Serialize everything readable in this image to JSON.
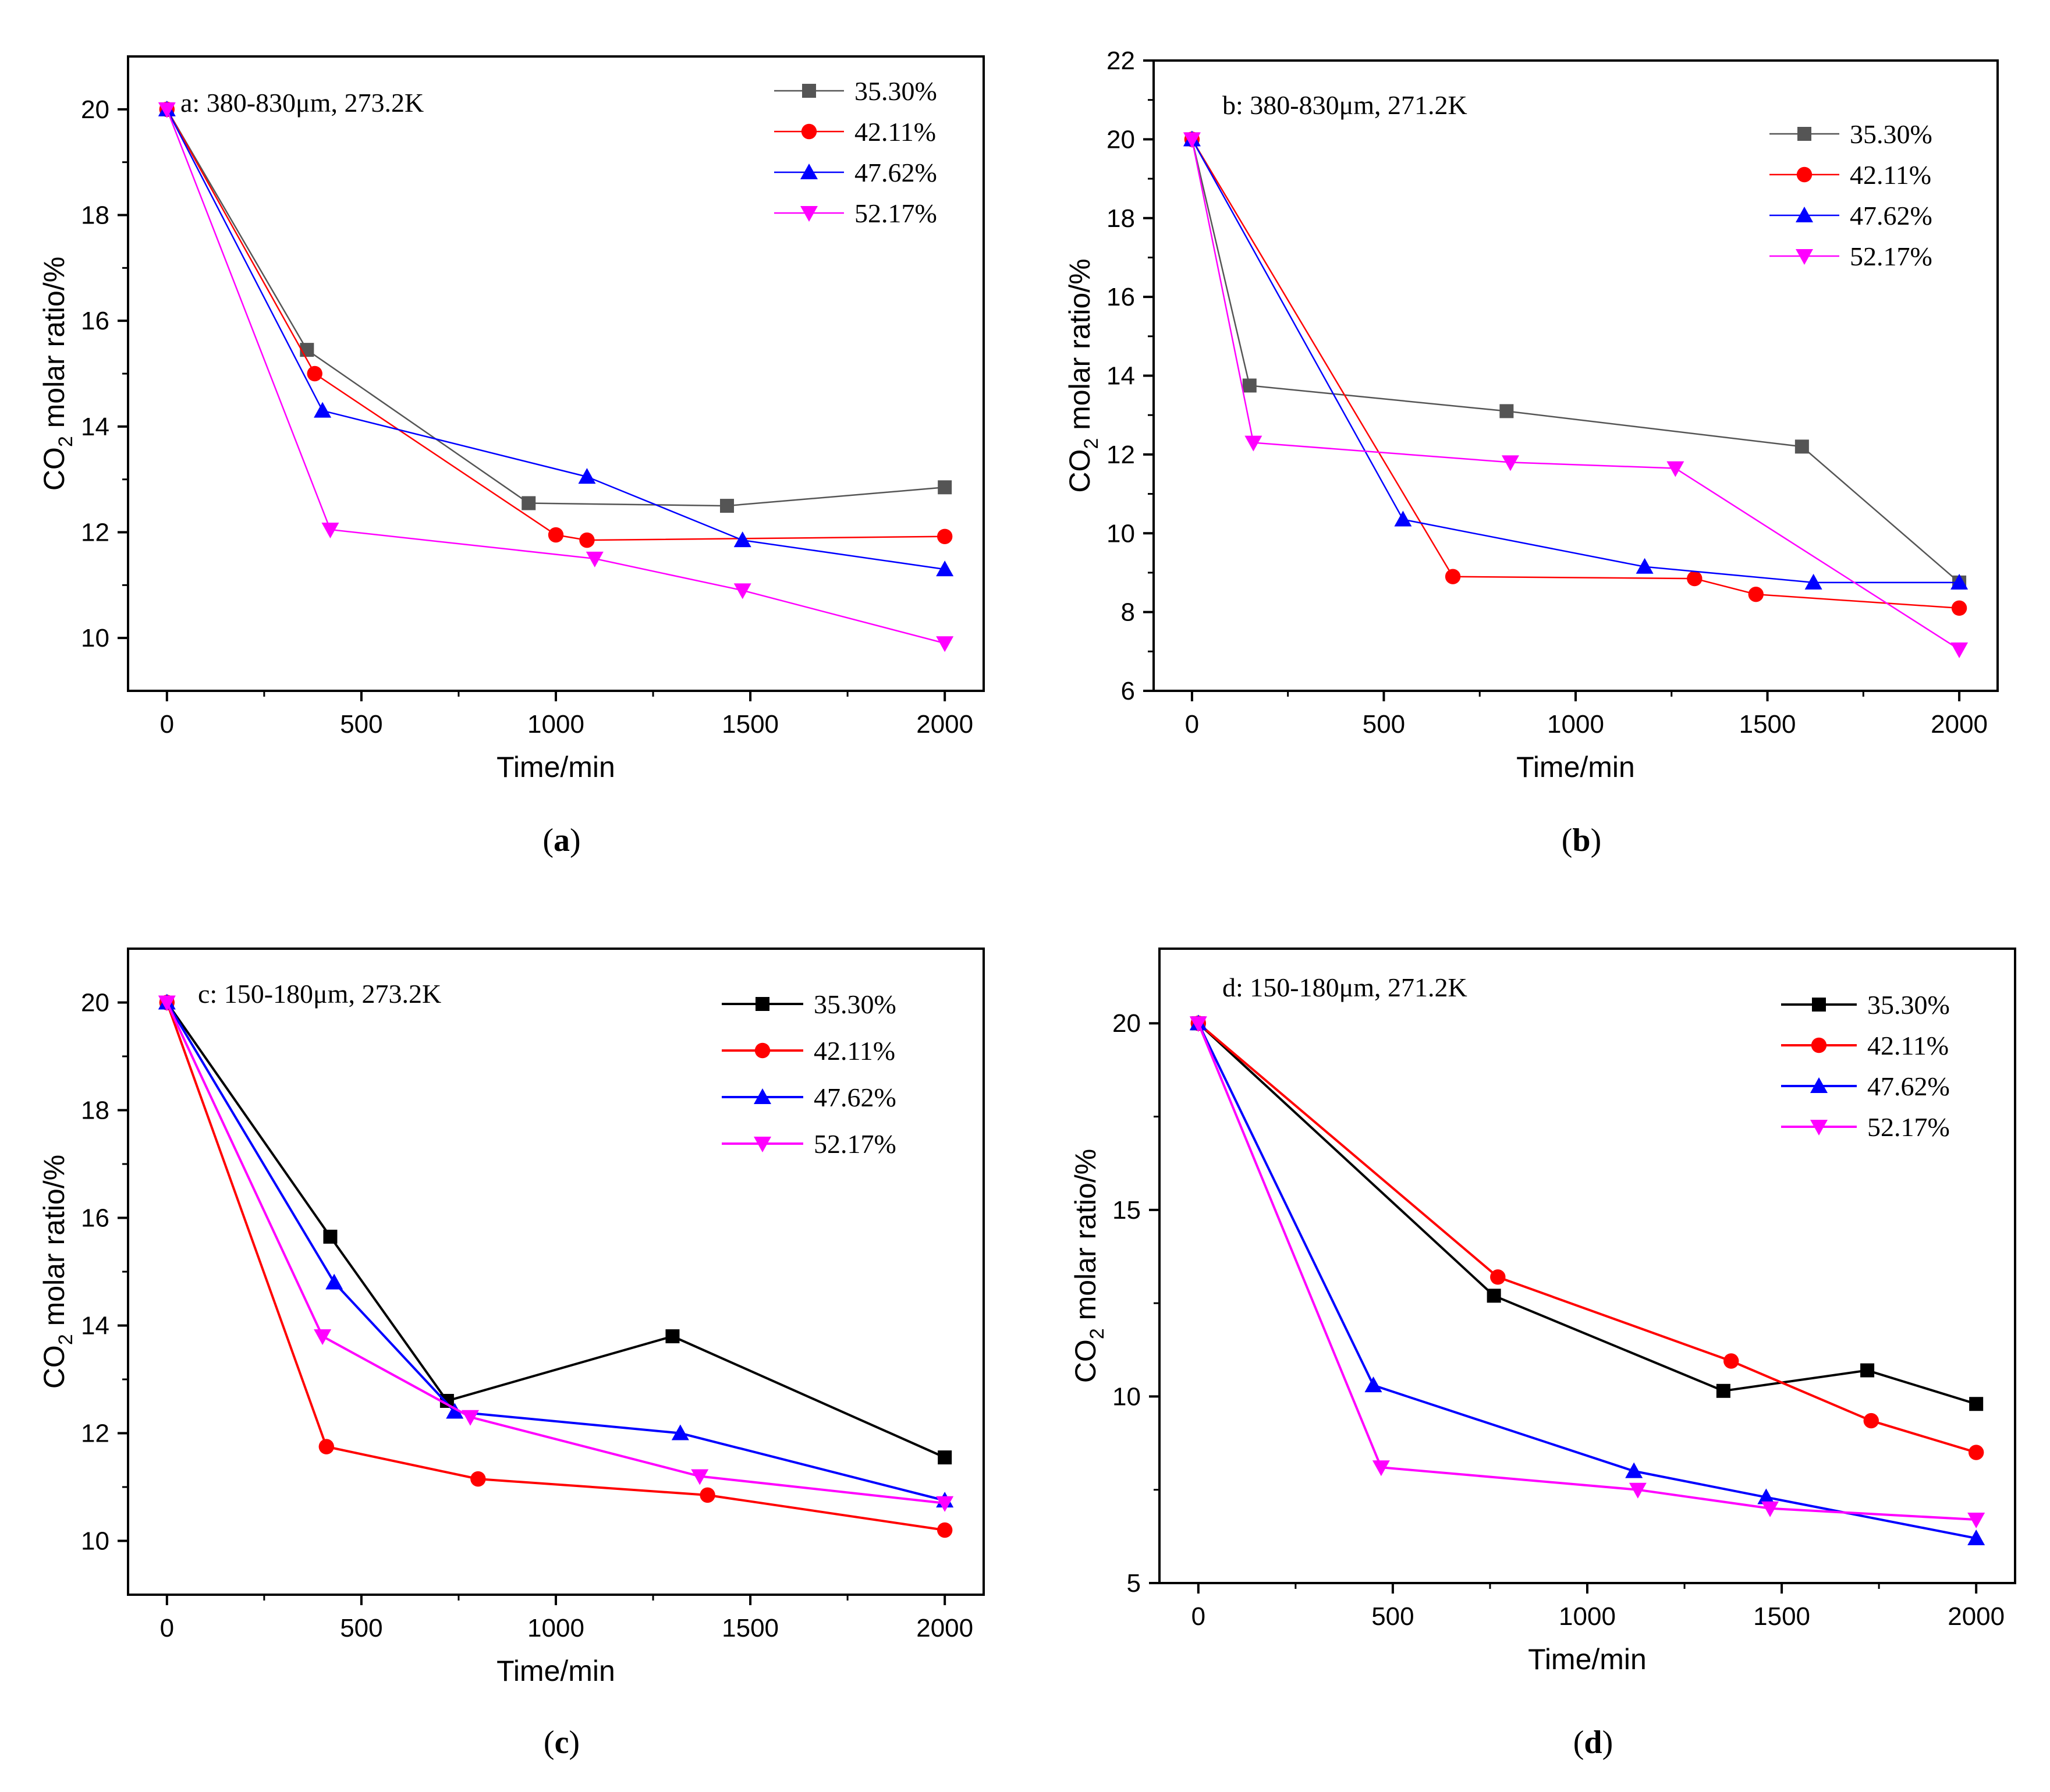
{
  "chart_data": [
    {
      "type": "line",
      "panel_label": "a",
      "annotation": "a: 380-830μm, 273.2K",
      "xlabel": "Time/min",
      "ylabel_main": "CO",
      "ylabel_sub": "2",
      "ylabel_rest": " molar ratio/%",
      "xlim": [
        -100,
        2100
      ],
      "ylim": [
        9,
        21
      ],
      "xticks": [
        0,
        500,
        1000,
        1500,
        2000
      ],
      "yticks": [
        10,
        12,
        14,
        16,
        18,
        20
      ],
      "legend_position": "top-right",
      "series": [
        {
          "name": "35.30%",
          "color": "#555555",
          "marker": "square",
          "x": [
            0,
            360,
            930,
            1440,
            2000
          ],
          "y": [
            20,
            15.45,
            12.55,
            12.5,
            12.85
          ]
        },
        {
          "name": "42.11%",
          "color": "#ff0000",
          "marker": "circle",
          "x": [
            0,
            380,
            1000,
            1080,
            2000
          ],
          "y": [
            20,
            15.0,
            11.95,
            11.85,
            11.92
          ]
        },
        {
          "name": "47.62%",
          "color": "#0000ff",
          "marker": "triangle-up",
          "x": [
            0,
            400,
            1080,
            1480,
            2000
          ],
          "y": [
            20,
            14.3,
            13.05,
            11.85,
            11.3
          ]
        },
        {
          "name": "52.17%",
          "color": "#ff00ff",
          "marker": "triangle-down",
          "x": [
            0,
            420,
            1100,
            1480,
            2000
          ],
          "y": [
            20,
            12.05,
            11.5,
            10.9,
            9.9
          ]
        }
      ]
    },
    {
      "type": "line",
      "panel_label": "b",
      "annotation": "b: 380-830μm, 271.2K",
      "xlabel": "Time/min",
      "ylabel_main": "CO",
      "ylabel_sub": "2",
      "ylabel_rest": " molar ratio/%",
      "xlim": [
        -100,
        2100
      ],
      "ylim": [
        6,
        22
      ],
      "xticks": [
        0,
        500,
        1000,
        1500,
        2000
      ],
      "yticks": [
        6,
        8,
        10,
        12,
        14,
        16,
        18,
        20,
        22
      ],
      "legend_position": "top-right",
      "series": [
        {
          "name": "35.30%",
          "color": "#555555",
          "marker": "square",
          "x": [
            0,
            150,
            820,
            1590,
            2000
          ],
          "y": [
            20,
            13.75,
            13.1,
            12.2,
            8.75
          ]
        },
        {
          "name": "42.11%",
          "color": "#ff0000",
          "marker": "circle",
          "x": [
            0,
            680,
            1310,
            1470,
            2000
          ],
          "y": [
            20,
            8.9,
            8.85,
            8.45,
            8.1
          ]
        },
        {
          "name": "47.62%",
          "color": "#0000ff",
          "marker": "triangle-up",
          "x": [
            0,
            550,
            1180,
            1620,
            2000
          ],
          "y": [
            20,
            10.35,
            9.15,
            8.75,
            8.75
          ]
        },
        {
          "name": "52.17%",
          "color": "#ff00ff",
          "marker": "triangle-down",
          "x": [
            0,
            160,
            830,
            1260,
            2000
          ],
          "y": [
            20,
            12.3,
            11.8,
            11.65,
            7.05
          ]
        }
      ]
    },
    {
      "type": "line",
      "panel_label": "c",
      "annotation": "c: 150-180μm, 273.2K",
      "xlabel": "Time/min",
      "ylabel_main": "CO",
      "ylabel_sub": "2",
      "ylabel_rest": " molar ratio/%",
      "xlim": [
        -100,
        2100
      ],
      "ylim": [
        9,
        21
      ],
      "xticks": [
        0,
        500,
        1000,
        1500,
        2000
      ],
      "yticks": [
        10,
        12,
        14,
        16,
        18,
        20
      ],
      "legend_position": "top-right",
      "series": [
        {
          "name": "35.30%",
          "color": "#000000",
          "marker": "square",
          "x": [
            0,
            420,
            720,
            1300,
            2000
          ],
          "y": [
            20,
            15.65,
            12.6,
            13.8,
            11.55
          ]
        },
        {
          "name": "42.11%",
          "color": "#ff0000",
          "marker": "circle",
          "x": [
            0,
            410,
            800,
            1390,
            2000
          ],
          "y": [
            20,
            11.75,
            11.15,
            10.85,
            10.2
          ]
        },
        {
          "name": "47.62%",
          "color": "#0000ff",
          "marker": "triangle-up",
          "x": [
            0,
            430,
            740,
            1320,
            2000
          ],
          "y": [
            20,
            14.8,
            12.4,
            12.0,
            10.75
          ]
        },
        {
          "name": "52.17%",
          "color": "#ff00ff",
          "marker": "triangle-down",
          "x": [
            0,
            400,
            780,
            1370,
            2000
          ],
          "y": [
            20,
            13.8,
            12.3,
            11.2,
            10.7
          ]
        }
      ]
    },
    {
      "type": "line",
      "panel_label": "d",
      "annotation": "d: 150-180μm, 271.2K",
      "xlabel": "Time/min",
      "ylabel_main": "CO",
      "ylabel_sub": "2",
      "ylabel_rest": " molar ratio/%",
      "xlim": [
        -100,
        2100
      ],
      "ylim": [
        5,
        22
      ],
      "xticks": [
        0,
        500,
        1000,
        1500,
        2000
      ],
      "yticks": [
        5,
        10,
        15,
        20
      ],
      "legend_position": "top-right",
      "series": [
        {
          "name": "35.30%",
          "color": "#000000",
          "marker": "square",
          "x": [
            0,
            760,
            1350,
            1720,
            2000
          ],
          "y": [
            20,
            12.7,
            10.15,
            10.7,
            9.8
          ]
        },
        {
          "name": "42.11%",
          "color": "#ff0000",
          "marker": "circle",
          "x": [
            0,
            770,
            1370,
            1730,
            2000
          ],
          "y": [
            20,
            13.2,
            10.95,
            9.35,
            8.5
          ]
        },
        {
          "name": "47.62%",
          "color": "#0000ff",
          "marker": "triangle-up",
          "x": [
            0,
            450,
            1120,
            1460,
            2000
          ],
          "y": [
            20,
            10.3,
            8.0,
            7.3,
            6.2
          ]
        },
        {
          "name": "52.17%",
          "color": "#ff00ff",
          "marker": "triangle-down",
          "x": [
            0,
            470,
            1130,
            1470,
            2000
          ],
          "y": [
            20,
            8.1,
            7.5,
            7.0,
            6.7
          ]
        }
      ]
    }
  ]
}
